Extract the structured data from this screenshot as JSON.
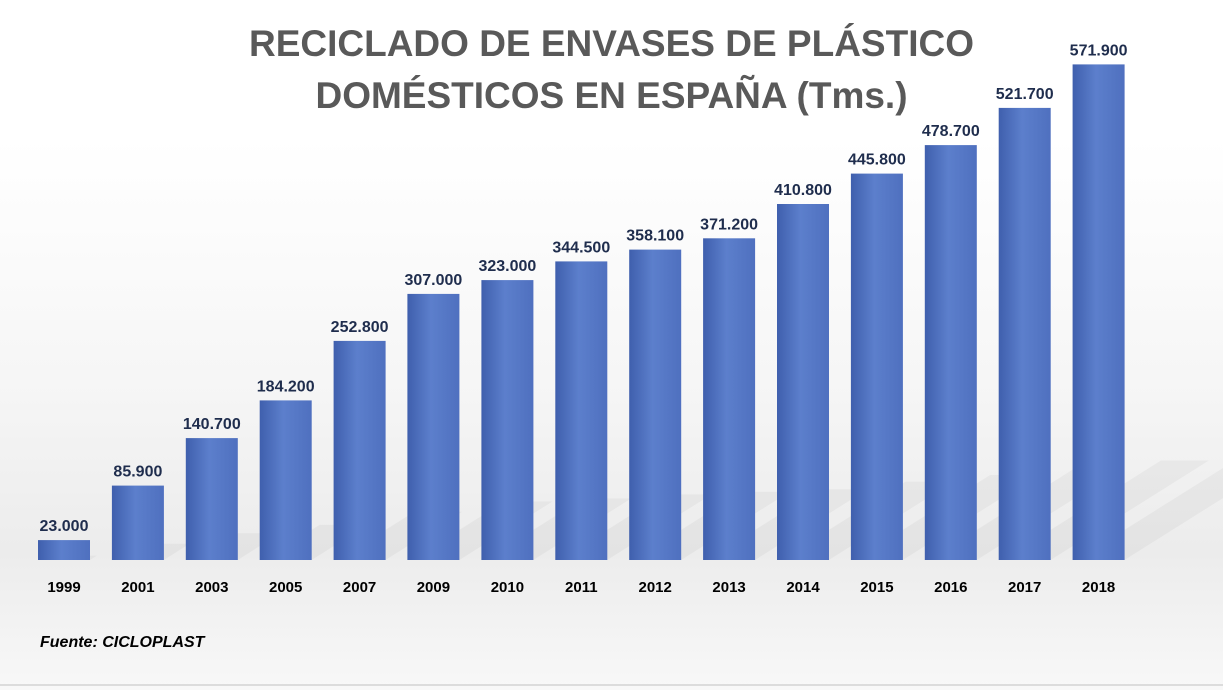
{
  "title_line1": "RECICLADO DE ENVASES DE PLÁSTICO",
  "title_line2": "DOMÉSTICOS EN ESPAÑA (Tms.)",
  "source": "Fuente: CICLOPLAST",
  "colors": {
    "bar": "#4f70bf",
    "bar_dark": "#3f5fad",
    "bar_light": "#5c7fcc",
    "label": "#1f2d4d",
    "title": "#595959"
  },
  "chart_data": {
    "type": "bar",
    "title": "RECICLADO DE ENVASES DE PLÁSTICO DOMÉSTICOS EN ESPAÑA (Tms.)",
    "xlabel": "",
    "ylabel": "",
    "categories": [
      "1999",
      "2001",
      "2003",
      "2005",
      "2007",
      "2009",
      "2010",
      "2011",
      "2012",
      "2013",
      "2014",
      "2015",
      "2016",
      "2017",
      "2018"
    ],
    "values": [
      23000,
      85900,
      140700,
      184200,
      252800,
      307000,
      323000,
      344500,
      358100,
      371200,
      410800,
      445800,
      478700,
      521700,
      571900
    ],
    "value_labels": [
      "23.000",
      "85.900",
      "140.700",
      "184.200",
      "252.800",
      "307.000",
      "323.000",
      "344.500",
      "358.100",
      "371.200",
      "410.800",
      "445.800",
      "478.700",
      "521.700",
      "571.900"
    ],
    "ylim": [
      0,
      600000
    ],
    "grid": false,
    "legend": "none"
  }
}
